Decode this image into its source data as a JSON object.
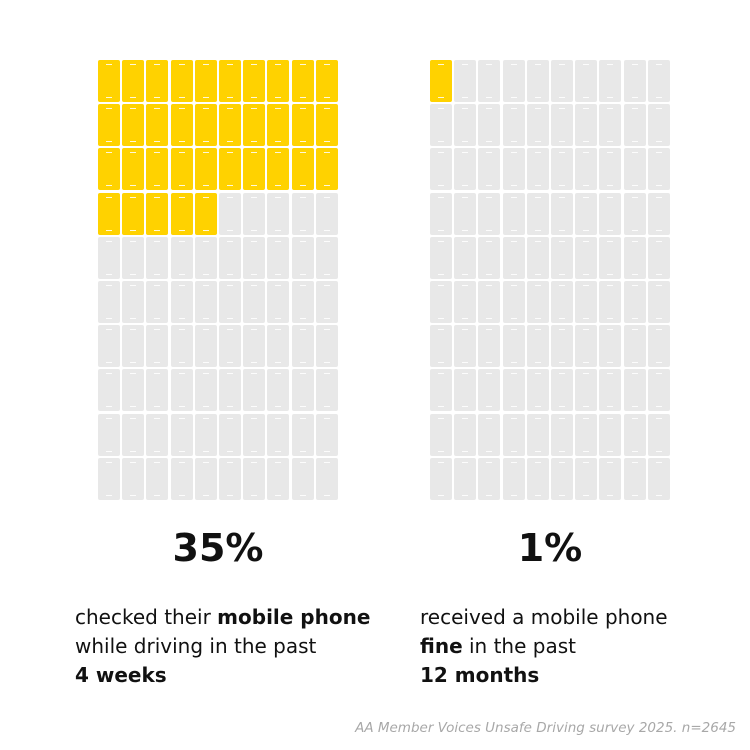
{
  "chart_data": [
    {
      "type": "waffle",
      "rows": 10,
      "cols": 10,
      "total": 100,
      "value": 35,
      "value_label": "35%",
      "caption": {
        "part1": "checked their ",
        "bold1": "mobile phone",
        "part2": "while driving in the past",
        "bold2": "4 weeks"
      },
      "highlight_color": "#FFD200",
      "base_color": "#E8E8E8"
    },
    {
      "type": "waffle",
      "rows": 10,
      "cols": 10,
      "total": 100,
      "value": 1,
      "value_label": "1%",
      "caption": {
        "part1": "received a mobile phone",
        "bold1": "fine",
        "part2": " in the past",
        "bold2": "12 months"
      },
      "highlight_color": "#FFD200",
      "base_color": "#E8E8E8"
    }
  ],
  "source": "AA Member Voices Unsafe Driving survey 2025. n=2645"
}
